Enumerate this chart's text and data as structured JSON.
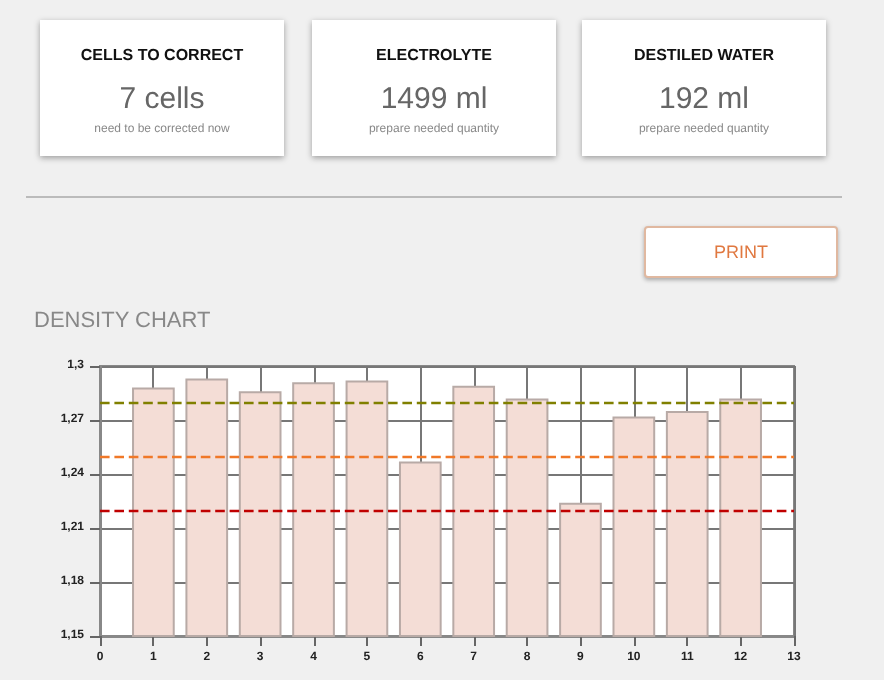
{
  "chart_data": [
    {
      "type": "other",
      "annotations": [
        "CELLS TO CORRECT",
        "7 cells",
        "need to be corrected now",
        "ELECTROLYTE",
        "1499 ml",
        "prepare needed quantity",
        "DESTILED WATER",
        "192 ml",
        "prepare needed quantity",
        "PRINT"
      ]
    },
    {
      "type": "bar",
      "title": "DENSITY CHART",
      "x": [
        1,
        2,
        3,
        4,
        5,
        6,
        7,
        8,
        9,
        10,
        11,
        12
      ],
      "values": [
        1.288,
        1.293,
        1.286,
        1.291,
        1.292,
        1.247,
        1.289,
        1.282,
        1.224,
        1.272,
        1.275,
        1.282
      ],
      "color": "#f4ddd6",
      "xlim": [
        0,
        13
      ],
      "xticks": [
        0,
        1,
        2,
        3,
        4,
        5,
        6,
        7,
        8,
        9,
        10,
        11,
        12,
        13
      ],
      "ylim": [
        1.15,
        1.3
      ],
      "yticks": [
        {
          "value": 1.15,
          "label": "1,15"
        },
        {
          "value": 1.18,
          "label": "1,18"
        },
        {
          "value": 1.21,
          "label": "1,21"
        },
        {
          "value": 1.24,
          "label": "1,24"
        },
        {
          "value": 1.27,
          "label": "1,27"
        },
        {
          "value": 1.3,
          "label": "1,3"
        }
      ],
      "grid": true,
      "ref_lines": [
        {
          "axis": "y",
          "value": 1.28,
          "color": "#808000",
          "line_style": "dashed"
        },
        {
          "axis": "y",
          "value": 1.25,
          "color": "#f07828",
          "line_style": "dashed"
        },
        {
          "axis": "y",
          "value": 1.22,
          "color": "#c00000",
          "line_style": "dashed"
        }
      ]
    }
  ]
}
